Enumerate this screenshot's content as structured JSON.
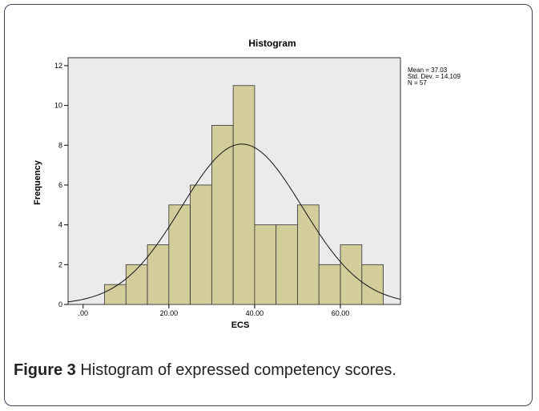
{
  "chart_data": {
    "type": "histogram",
    "title": "Histogram",
    "xlabel": "ECS",
    "ylabel": "Frequency",
    "bins": [
      5,
      10,
      15,
      20,
      25,
      30,
      35,
      40,
      45,
      50,
      55,
      60,
      65,
      70
    ],
    "counts": [
      1,
      2,
      3,
      5,
      6,
      9,
      11,
      4,
      4,
      5,
      2,
      3,
      2
    ],
    "color": "#d3cd9c",
    "xlim": [
      -3.5,
      74
    ],
    "xticks": [
      {
        "value": 0,
        "label": ".00"
      },
      {
        "value": 20,
        "label": "20.00"
      },
      {
        "value": 40,
        "label": "40.00"
      },
      {
        "value": 60,
        "label": "60.00"
      }
    ],
    "ylim": [
      0,
      12.4
    ],
    "yticks": [
      0,
      2,
      4,
      6,
      8,
      10,
      12
    ],
    "curve": {
      "mean": 37.03,
      "sd": 14.109,
      "n": 57
    },
    "annotations": [
      "Mean = 37.03",
      "Std. Dev. = 14.109",
      "N = 57"
    ]
  },
  "caption": {
    "label": "Figure 3",
    "text": "Histogram of expressed competency scores."
  }
}
